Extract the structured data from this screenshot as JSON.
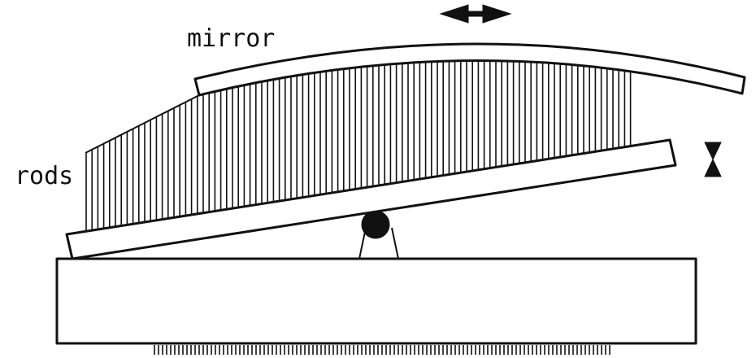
{
  "diagram": {
    "labels": {
      "mirror": "mirror",
      "rods": "rods"
    },
    "icons": {
      "horizontal_arrow": "double-headed-horizontal-arrow-icon",
      "vertical_arrow": "double-headed-vertical-arrow-icon"
    },
    "colors": {
      "ink": "#111111",
      "paper": "#ffffff"
    }
  }
}
